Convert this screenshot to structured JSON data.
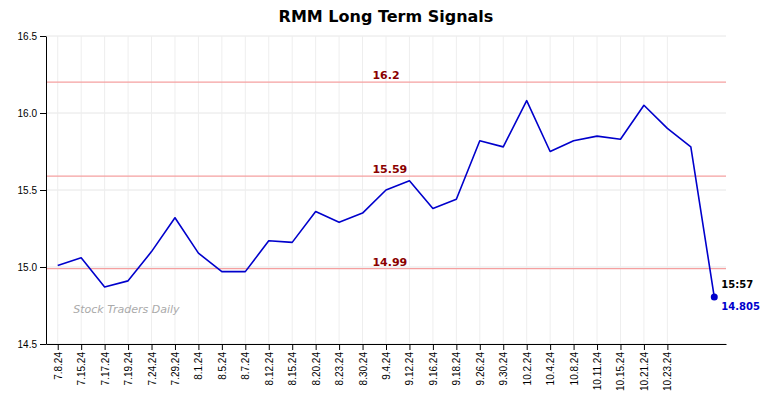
{
  "chart_data": {
    "type": "line",
    "title": "RMM Long Term Signals",
    "categories": [
      "7.8.24",
      "7.15.24",
      "7.17.24",
      "7.19.24",
      "7.24.24",
      "7.29.24",
      "8.1.24",
      "8.5.24",
      "8.7.24",
      "8.12.24",
      "8.15.24",
      "8.20.24",
      "8.23.24",
      "8.30.24",
      "9.4.24",
      "9.12.24",
      "9.16.24",
      "9.18.24",
      "9.26.24",
      "9.30.24",
      "10.2.24",
      "10.4.24",
      "10.8.24",
      "10.11.24",
      "10.15.24",
      "10.21.24",
      "10.23.24",
      null,
      null
    ],
    "series": [
      {
        "name": "RMM",
        "color": "#0000cc",
        "values": [
          15.01,
          15.06,
          14.87,
          14.91,
          15.1,
          15.32,
          15.09,
          14.97,
          14.97,
          15.17,
          15.16,
          15.36,
          15.29,
          15.35,
          15.5,
          15.56,
          15.38,
          15.44,
          15.82,
          15.78,
          16.08,
          15.75,
          15.82,
          15.85,
          15.83,
          16.05,
          15.9,
          15.78,
          14.805
        ]
      }
    ],
    "reference_lines": [
      {
        "value": 14.99,
        "label": "14.99",
        "color": "#f5a0a0",
        "label_color": "#8b0000"
      },
      {
        "value": 15.59,
        "label": "15.59",
        "color": "#f5a0a0",
        "label_color": "#8b0000"
      },
      {
        "value": 16.2,
        "label": "16.2",
        "color": "#f5a0a0",
        "label_color": "#8b0000"
      }
    ],
    "annotations": [
      {
        "text": "15:57",
        "color": "#000000"
      },
      {
        "text": "14.805",
        "color": "#0000cc"
      }
    ],
    "watermark": {
      "text": "Stock Traders Daily",
      "color": "#aaaaaa"
    },
    "ylim": [
      14.5,
      16.5
    ],
    "yticks": [
      14.5,
      {
        "value": 15,
        "label": "15.0"
      },
      15.5,
      {
        "value": 16,
        "label": "16.0"
      },
      16.5
    ],
    "grid": true
  }
}
